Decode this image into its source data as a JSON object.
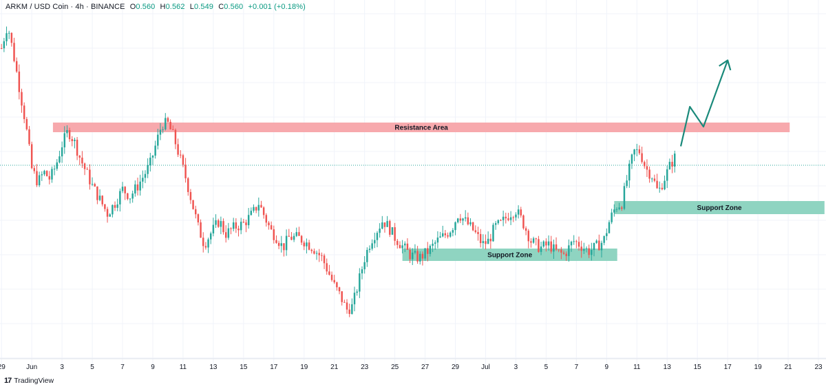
{
  "header": {
    "symbol": "ARKM / USD Coin · 4h · BINANCE",
    "open_label": "O",
    "open": "0.560",
    "high_label": "H",
    "high": "0.562",
    "low_label": "L",
    "low": "0.549",
    "close_label": "C",
    "close": "0.560",
    "change": "+0.001 (+0.18%)"
  },
  "branding": {
    "logo": "17",
    "name": "TradingView"
  },
  "colors": {
    "up": "#26a69a",
    "down": "#ef5350",
    "wick_up": "#26a69a",
    "wick_down": "#ef5350",
    "resistance": "#f7a9ad",
    "support": "#8fd4c1",
    "projection": "#19897a",
    "price_line": "#26a69a",
    "grid": "#f0f3fa",
    "axis_text": "#131722"
  },
  "chart_data": {
    "type": "candlestick",
    "x_tick_labels": [
      "29",
      "Jun",
      "3",
      "5",
      "7",
      "9",
      "11",
      "13",
      "15",
      "17",
      "19",
      "21",
      "23",
      "25",
      "27",
      "29",
      "Jul",
      "3",
      "5",
      "7",
      "9",
      "11",
      "13",
      "15",
      "17",
      "19",
      "21",
      "23"
    ],
    "x_tick_days": [
      -2,
      0,
      2,
      4,
      6,
      8,
      10,
      12,
      14,
      16,
      18,
      20,
      22,
      24,
      26,
      28,
      30,
      32,
      34,
      36,
      38,
      40,
      42,
      44,
      46,
      48,
      50,
      52
    ],
    "x_range_days": [
      -2.1,
      52.5
    ],
    "y_range": [
      0,
      1
    ],
    "grid": true,
    "current_price_line": 0.56,
    "annotations": [
      {
        "label": "Resistance Area",
        "kind": "resistance",
        "x0": 1.4,
        "x1": 50.1,
        "y_top": 0.684,
        "y_bottom": 0.656
      },
      {
        "label": "Support Zone",
        "kind": "support",
        "x0": 24.5,
        "x1": 38.7,
        "y_top": 0.318,
        "y_bottom": 0.282
      },
      {
        "label": "Support Zone",
        "kind": "support",
        "x0": 38.5,
        "x1": 52.4,
        "y_top": 0.456,
        "y_bottom": 0.418
      }
    ],
    "projection_path": [
      [
        42.9,
        0.615
      ],
      [
        43.5,
        0.73
      ],
      [
        44.4,
        0.672
      ],
      [
        46.0,
        0.865
      ]
    ],
    "candles_anchor_path": [
      [
        -2.0,
        0.9
      ],
      [
        -1.6,
        0.97
      ],
      [
        -1.2,
        0.88
      ],
      [
        -0.8,
        0.78
      ],
      [
        -0.4,
        0.68
      ],
      [
        0.0,
        0.55
      ],
      [
        0.4,
        0.51
      ],
      [
        0.8,
        0.54
      ],
      [
        1.2,
        0.52
      ],
      [
        1.6,
        0.56
      ],
      [
        2.0,
        0.62
      ],
      [
        2.4,
        0.66
      ],
      [
        2.8,
        0.63
      ],
      [
        3.2,
        0.58
      ],
      [
        3.6,
        0.54
      ],
      [
        4.0,
        0.5
      ],
      [
        4.5,
        0.46
      ],
      [
        5.0,
        0.42
      ],
      [
        5.5,
        0.45
      ],
      [
        6.0,
        0.49
      ],
      [
        6.5,
        0.47
      ],
      [
        7.0,
        0.5
      ],
      [
        7.4,
        0.53
      ],
      [
        7.8,
        0.56
      ],
      [
        8.2,
        0.62
      ],
      [
        8.6,
        0.68
      ],
      [
        9.0,
        0.68
      ],
      [
        9.4,
        0.64
      ],
      [
        9.8,
        0.58
      ],
      [
        10.2,
        0.52
      ],
      [
        10.6,
        0.45
      ],
      [
        11.0,
        0.38
      ],
      [
        11.4,
        0.33
      ],
      [
        11.8,
        0.36
      ],
      [
        12.4,
        0.4
      ],
      [
        12.8,
        0.36
      ],
      [
        13.4,
        0.38
      ],
      [
        14.0,
        0.39
      ],
      [
        14.6,
        0.42
      ],
      [
        15.0,
        0.45
      ],
      [
        15.4,
        0.41
      ],
      [
        15.8,
        0.37
      ],
      [
        16.2,
        0.35
      ],
      [
        16.6,
        0.32
      ],
      [
        17.0,
        0.35
      ],
      [
        17.6,
        0.35
      ],
      [
        18.0,
        0.34
      ],
      [
        18.6,
        0.32
      ],
      [
        19.2,
        0.29
      ],
      [
        19.6,
        0.25
      ],
      [
        20.0,
        0.21
      ],
      [
        20.4,
        0.18
      ],
      [
        20.8,
        0.14
      ],
      [
        21.2,
        0.15
      ],
      [
        21.6,
        0.22
      ],
      [
        22.0,
        0.29
      ],
      [
        22.4,
        0.34
      ],
      [
        22.8,
        0.37
      ],
      [
        23.2,
        0.4
      ],
      [
        23.6,
        0.38
      ],
      [
        24.0,
        0.35
      ],
      [
        24.6,
        0.32
      ],
      [
        25.0,
        0.3
      ],
      [
        25.6,
        0.29
      ],
      [
        26.2,
        0.31
      ],
      [
        26.8,
        0.34
      ],
      [
        27.4,
        0.36
      ],
      [
        27.8,
        0.38
      ],
      [
        28.2,
        0.42
      ],
      [
        28.6,
        0.4
      ],
      [
        29.2,
        0.37
      ],
      [
        29.8,
        0.33
      ],
      [
        30.2,
        0.34
      ],
      [
        30.6,
        0.38
      ],
      [
        31.0,
        0.39
      ],
      [
        31.6,
        0.42
      ],
      [
        32.0,
        0.43
      ],
      [
        32.4,
        0.4
      ],
      [
        33.0,
        0.34
      ],
      [
        33.6,
        0.32
      ],
      [
        34.2,
        0.33
      ],
      [
        34.6,
        0.31
      ],
      [
        35.2,
        0.3
      ],
      [
        35.8,
        0.34
      ],
      [
        36.2,
        0.33
      ],
      [
        36.8,
        0.31
      ],
      [
        37.2,
        0.32
      ],
      [
        37.8,
        0.34
      ],
      [
        38.2,
        0.4
      ],
      [
        38.6,
        0.44
      ],
      [
        39.0,
        0.45
      ],
      [
        39.4,
        0.53
      ],
      [
        39.8,
        0.6
      ],
      [
        40.2,
        0.6
      ],
      [
        40.6,
        0.55
      ],
      [
        41.0,
        0.53
      ],
      [
        41.4,
        0.48
      ],
      [
        41.8,
        0.52
      ],
      [
        42.2,
        0.56
      ],
      [
        42.6,
        0.59
      ]
    ]
  }
}
